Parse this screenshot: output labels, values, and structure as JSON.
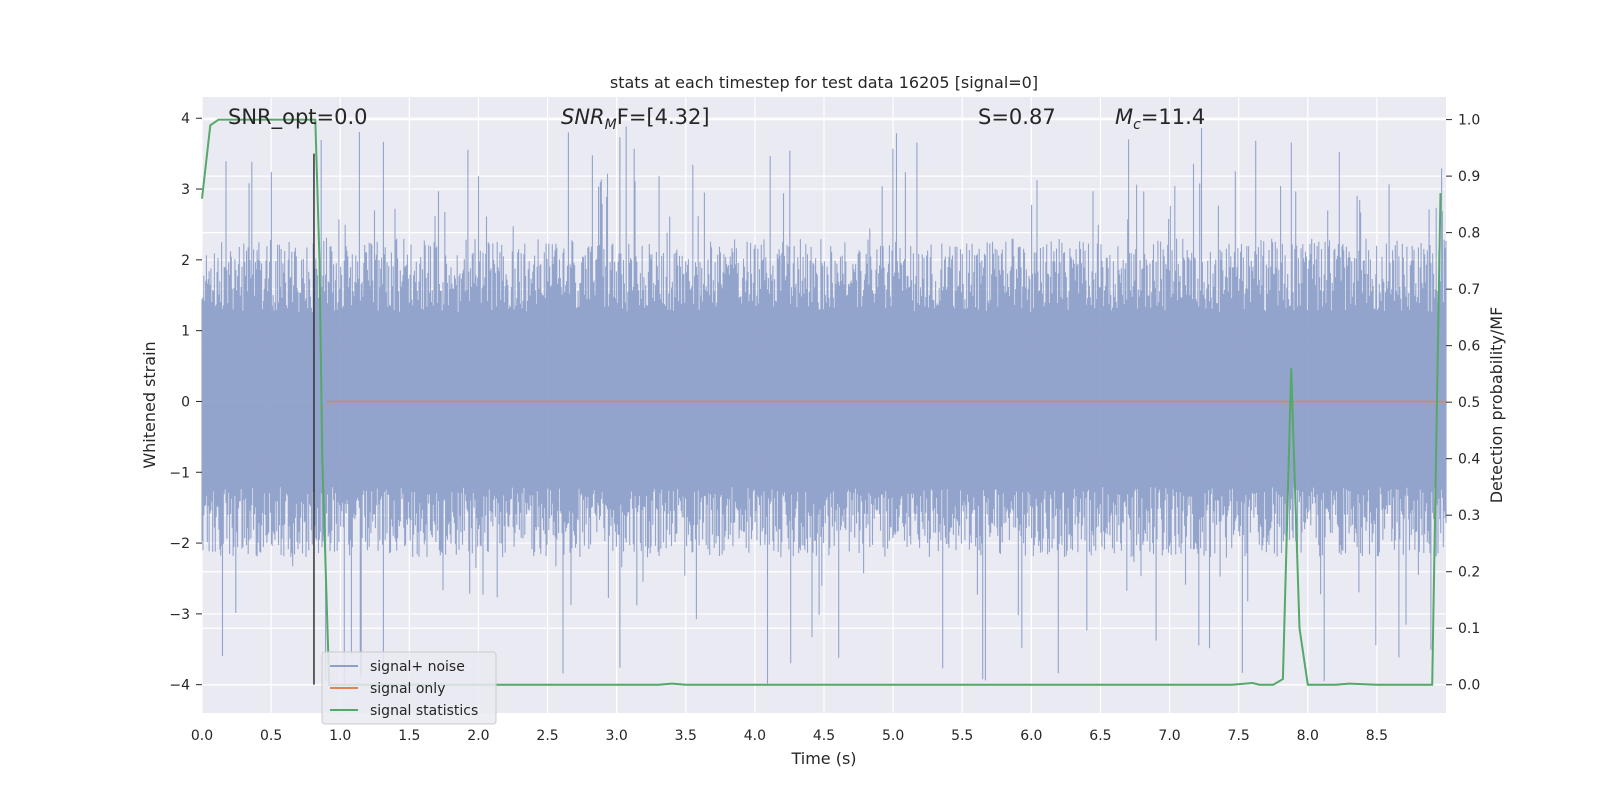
{
  "chart_data": {
    "type": "line",
    "title": "stats at each timestep for test data 16205 [signal=0]",
    "xlabel": "Time (s)",
    "ylabel": "Whitened strain",
    "y2label": "Detection probability/MF",
    "xlim": [
      0.0,
      9.0
    ],
    "ylim": [
      -4.4,
      4.3
    ],
    "y2lim": [
      -0.05,
      1.04
    ],
    "x_ticks": [
      "0.0",
      "0.5",
      "1.0",
      "1.5",
      "2.0",
      "2.5",
      "3.0",
      "3.5",
      "4.0",
      "4.5",
      "5.0",
      "5.5",
      "6.0",
      "6.5",
      "7.0",
      "7.5",
      "8.0",
      "8.5"
    ],
    "y_ticks": [
      "4",
      "3",
      "2",
      "1",
      "0",
      "−1",
      "−2",
      "−3",
      "−4"
    ],
    "y2_ticks": [
      "1.0",
      "0.9",
      "0.8",
      "0.7",
      "0.6",
      "0.5",
      "0.4",
      "0.3",
      "0.2",
      "0.1",
      "0.0"
    ],
    "annotations": {
      "snr_opt": "SNR_opt=0.0",
      "snr_mf": "SNR",
      "snr_mf_sub": "M",
      "snr_mf_tail": "F=[4.32]",
      "s_val": "S=0.87",
      "mc_main": "M",
      "mc_sub": "c",
      "mc_tail": "=11.4"
    },
    "legend": {
      "placement": "lower-left",
      "entries": [
        "signal+ noise",
        "signal only",
        "signal statistics"
      ]
    },
    "colors": {
      "noise": "#8ea0c9",
      "signal_only": "#dd8452",
      "statistics": "#55a868",
      "marker_line": "#333333",
      "background": "#eaeaf2",
      "grid": "#ffffff"
    },
    "series": [
      {
        "name": "signal+ noise",
        "kind": "noise",
        "x_range": [
          0.0,
          9.0
        ],
        "band_min": -2.2,
        "band_max": 2.3,
        "spike_max": 3.9,
        "spike_min": -4.0
      },
      {
        "name": "signal only",
        "kind": "flat",
        "x": [
          0.9,
          9.0
        ],
        "y": [
          0.0,
          0.0
        ]
      },
      {
        "name": "signal statistics",
        "kind": "line",
        "axis": "right",
        "x": [
          0.0,
          0.06,
          0.12,
          0.3,
          0.5,
          0.7,
          0.8,
          0.82,
          0.85,
          0.87,
          0.92,
          1.5,
          2.5,
          3.3,
          3.4,
          3.5,
          4.0,
          5.0,
          6.0,
          7.0,
          7.45,
          7.6,
          7.65,
          7.75,
          7.82,
          7.88,
          7.94,
          8.0,
          8.2,
          8.3,
          8.5,
          8.9,
          8.96
        ],
        "y": [
          0.86,
          0.99,
          1.0,
          1.0,
          1.0,
          1.0,
          1.0,
          1.0,
          0.75,
          0.4,
          0.0,
          0.0,
          0.0,
          0.0,
          0.002,
          0.0,
          0.0,
          0.0,
          0.0,
          0.0,
          0.0,
          0.003,
          0.0,
          0.0,
          0.01,
          0.56,
          0.1,
          0.0,
          0.0,
          0.002,
          0.0,
          0.0,
          0.87
        ]
      }
    ],
    "vertical_marker_x": 0.81
  }
}
